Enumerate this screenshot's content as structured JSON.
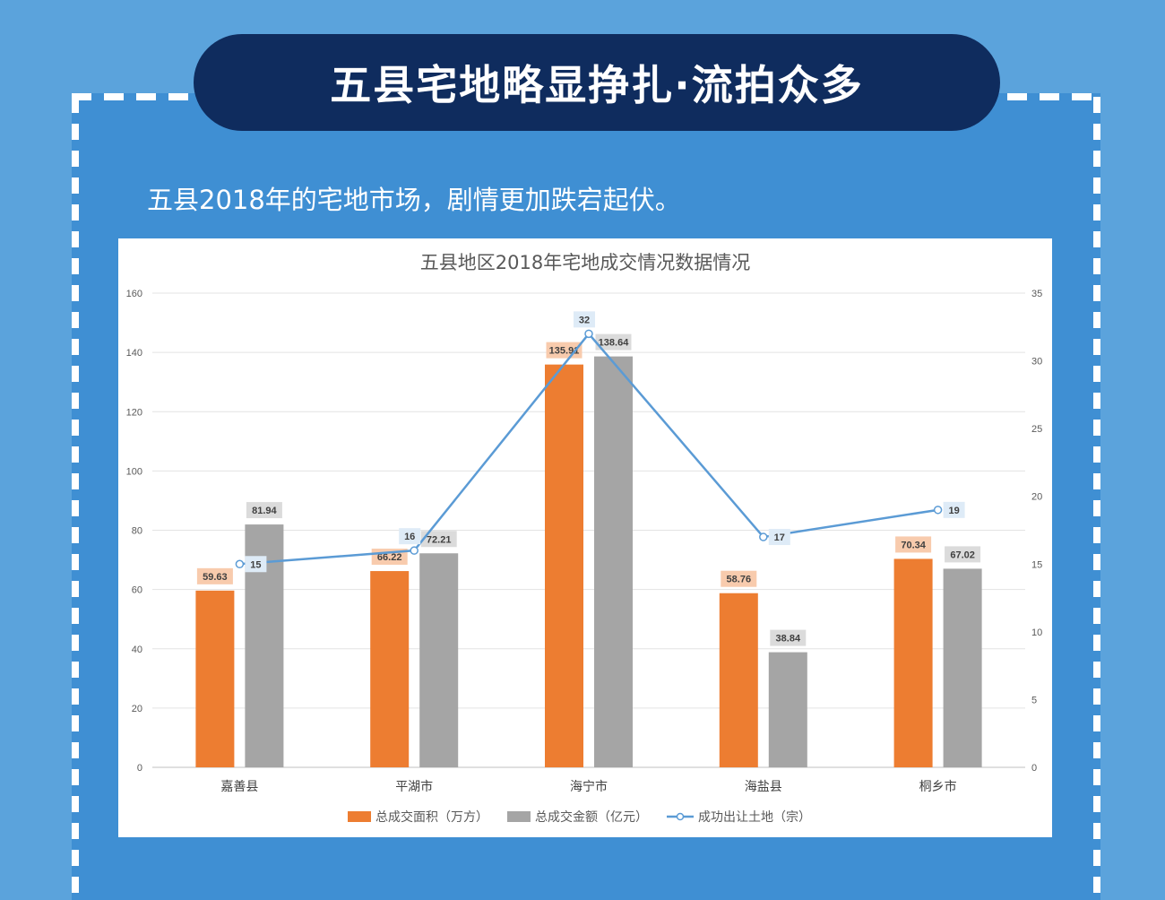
{
  "header": {
    "title": "五县宅地略显挣扎·流拍众多"
  },
  "subtitle": "五县2018年的宅地市场，剧情更加跌宕起伏。",
  "colors": {
    "area": "#ed7d31",
    "amount": "#a5a5a5",
    "count": "#5b9bd5",
    "area_label_bg": "#f8cbad",
    "amount_label_bg": "#dbdbdb",
    "count_label_bg": "#deebf7"
  },
  "chart_data": {
    "type": "bar",
    "title": "五县地区2018年宅地成交情况数据情况",
    "categories": [
      "嘉善县",
      "平湖市",
      "海宁市",
      "海盐县",
      "桐乡市"
    ],
    "series": [
      {
        "name": "总成交面积（万方）",
        "type": "bar",
        "axis": "left",
        "values": [
          59.63,
          66.22,
          135.91,
          58.76,
          70.34
        ]
      },
      {
        "name": "总成交金额（亿元）",
        "type": "bar",
        "axis": "left",
        "values": [
          81.94,
          72.21,
          138.64,
          38.84,
          67.02
        ]
      },
      {
        "name": "成功出让土地（宗）",
        "type": "line",
        "axis": "right",
        "values": [
          15,
          16,
          32,
          17,
          19
        ]
      }
    ],
    "y_left": {
      "min": 0,
      "max": 160,
      "step": 20
    },
    "y_right": {
      "min": 0,
      "max": 35,
      "step": 5
    },
    "grid": true,
    "legend": "bottom"
  }
}
